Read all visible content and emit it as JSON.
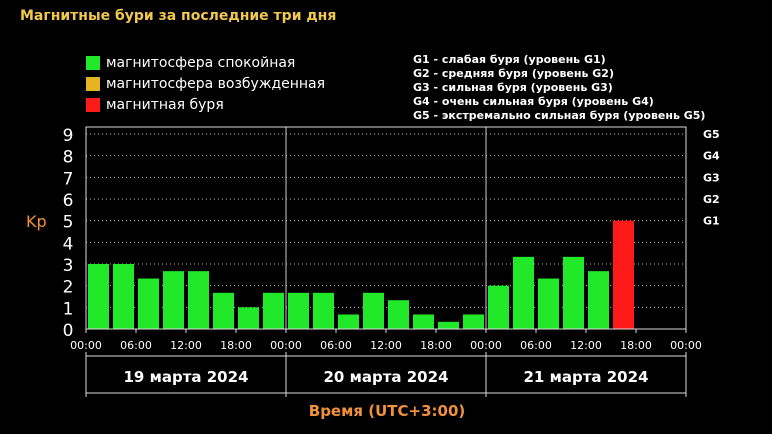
{
  "title": "Магнитные бури за последние три дня",
  "legend": [
    {
      "label": "магнитосфера спокойная",
      "color": "#22e82a"
    },
    {
      "label": "магнитосфера возбужденная",
      "color": "#e6b422"
    },
    {
      "label": "магнитная буря",
      "color": "#ff1a1a"
    }
  ],
  "g_levels": [
    "G1 - слабая буря (уровень G1)",
    "G2 - средняя буря (уровень G2)",
    "G3 - сильная буря (уровень G3)",
    "G4 - очень сильная буря (уровень G4)",
    "G5 - экстремально сильная буря (уровень G5)"
  ],
  "chart_data": {
    "type": "bar",
    "ylabel": "Kp",
    "xlabel": "Время (UTC+3:00)",
    "ylim": [
      0,
      9
    ],
    "y_ticks": [
      "0",
      "1",
      "2",
      "3",
      "4",
      "5",
      "6",
      "7",
      "8",
      "9"
    ],
    "right_ticks": [
      {
        "value": 5,
        "label": "G1"
      },
      {
        "value": 6,
        "label": "G2"
      },
      {
        "value": 7,
        "label": "G3"
      },
      {
        "value": 8,
        "label": "G4"
      },
      {
        "value": 9,
        "label": "G5"
      }
    ],
    "x_tick_labels": [
      "00:00",
      "06:00",
      "12:00",
      "18:00",
      "00:00",
      "06:00",
      "12:00",
      "18:00",
      "00:00",
      "06:00",
      "12:00",
      "18:00",
      "00:00"
    ],
    "days": [
      "19 марта 2024",
      "20 марта 2024",
      "21 марта 2024"
    ],
    "grid": true,
    "values": [
      3.0,
      3.0,
      2.33,
      2.67,
      2.67,
      1.67,
      1.0,
      1.67,
      1.67,
      1.67,
      0.67,
      1.67,
      1.33,
      0.67,
      0.33,
      0.67,
      2.0,
      3.33,
      2.33,
      3.33,
      2.67,
      5.0
    ],
    "colors": {
      "quiet": "#22e82a",
      "storm": "#ff1a1a"
    },
    "storm_threshold": 5
  }
}
